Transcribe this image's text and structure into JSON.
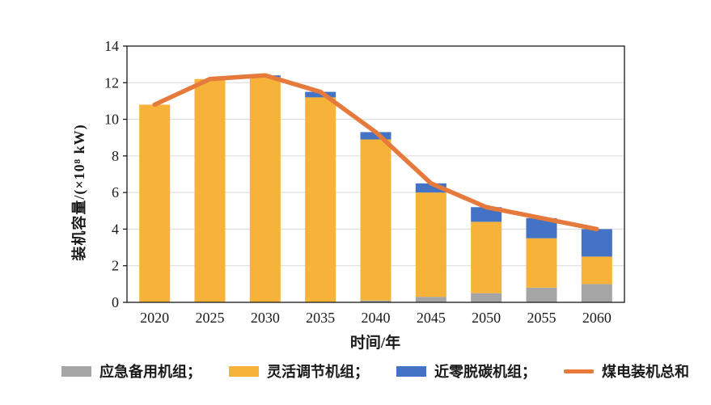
{
  "chart_data": {
    "type": "bar",
    "subtype": "stacked-bar-with-line",
    "title": "",
    "xlabel": "时间/年",
    "ylabel": "装机容量/(×10⁸ kW)",
    "categories": [
      "2020",
      "2025",
      "2030",
      "2035",
      "2040",
      "2045",
      "2050",
      "2055",
      "2060"
    ],
    "ylim": [
      0,
      14
    ],
    "yticks": [
      0,
      2,
      4,
      6,
      8,
      10,
      12,
      14
    ],
    "grid": "horizontal",
    "legend_position": "bottom",
    "series": [
      {
        "name": "应急备用机组",
        "type": "bar",
        "color": "#A5A5A5",
        "values": [
          0,
          0,
          0,
          0,
          0.1,
          0.3,
          0.5,
          0.8,
          1.0
        ]
      },
      {
        "name": "灵活调节机组",
        "type": "bar",
        "color": "#F7B339",
        "values": [
          10.8,
          12.2,
          12.3,
          11.2,
          8.8,
          5.7,
          3.9,
          2.7,
          1.5
        ]
      },
      {
        "name": "近零脱碳机组",
        "type": "bar",
        "color": "#4472C4",
        "values": [
          0,
          0,
          0.1,
          0.3,
          0.4,
          0.5,
          0.8,
          1.1,
          1.5
        ]
      },
      {
        "name": "煤电装机总和",
        "type": "line",
        "color": "#E57A3C",
        "values": [
          10.8,
          12.2,
          12.4,
          11.5,
          9.3,
          6.5,
          5.2,
          4.6,
          4.0
        ]
      }
    ],
    "totals": [
      10.8,
      12.2,
      12.4,
      11.5,
      9.3,
      6.5,
      5.2,
      4.6,
      4.0
    ],
    "legend_labels": [
      "应急备用机组；",
      "灵活调节机组；",
      "近零脱碳机组；",
      "煤电装机总和"
    ],
    "axis_color": "#1a1a1a",
    "gridline_color": "#d9d9d9"
  }
}
